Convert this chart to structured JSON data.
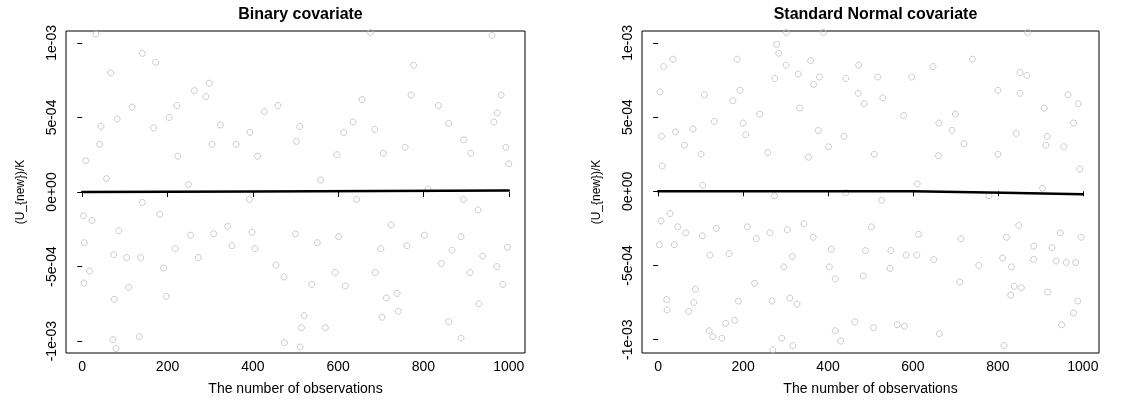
{
  "chart_data": [
    {
      "type": "scatter",
      "title": "Binary covariate",
      "xlabel": "The number of observations",
      "ylabel": "(U_{new})/K",
      "xlim": [
        -38,
        1038
      ],
      "xticks": [
        0,
        200,
        400,
        600,
        800,
        1000
      ],
      "ylim": [
        -0.00108,
        0.00108
      ],
      "yticks": [
        {
          "value": -0.001,
          "label": "-1e-03"
        },
        {
          "value": -0.0005,
          "label": "-5e-04"
        },
        {
          "value": 0,
          "label": "0e+00"
        },
        {
          "value": 0.0005,
          "label": "5e-04"
        },
        {
          "value": 0.001,
          "label": "1e-03"
        }
      ],
      "grid": false,
      "marker": "circle",
      "series": [
        {
          "color": "#bebebe",
          "x": [
            32,
            676,
            961,
            141,
            172,
            67,
            777,
            298,
            263,
            290,
            771,
            982,
            656,
            117,
            222,
            459,
            835,
            427,
            973,
            82,
            204,
            324,
            510,
            859,
            44,
            167,
            635,
            686,
            393,
            613,
            965,
            894,
            41,
            304,
            361,
            502,
            757,
            993,
            8,
            224,
            411,
            597,
            706,
            911,
            1000,
            57,
            249,
            559,
            810,
            643,
            392,
            141,
            894,
            3,
            23,
            86,
            182,
            254,
            308,
            398,
            341,
            500,
            601,
            724,
            802,
            888,
            928,
            5,
            351,
            405,
            551,
            700,
            761,
            867,
            997,
            218,
            272,
            104,
            137,
            74,
            939,
            17,
            191,
            454,
            473,
            593,
            687,
            842,
            909,
            972,
            4,
            109,
            538,
            617,
            986,
            197,
            713,
            738,
            75,
            930,
            703,
            741,
            520,
            514,
            570,
            859,
            72,
            134,
            474,
            511,
            79,
            888
          ],
          "values": [
            0.00106,
            0.00107,
            0.00105,
            0.00093,
            0.00087,
            0.0008,
            0.00085,
            0.00073,
            0.00068,
            0.00064,
            0.00065,
            0.00065,
            0.00062,
            0.00057,
            0.00058,
            0.00058,
            0.00058,
            0.00054,
            0.00053,
            0.00049,
            0.0005,
            0.00045,
            0.00044,
            0.00046,
            0.00044,
            0.00043,
            0.00047,
            0.00042,
            0.0004,
            0.0004,
            0.00047,
            0.00035,
            0.00032,
            0.00032,
            0.00032,
            0.00034,
            0.0003,
            0.0003,
            0.00021,
            0.00024,
            0.00024,
            0.00025,
            0.00026,
            0.00026,
            0.00019,
            9e-05,
            5e-05,
            8e-05,
            2e-05,
            -5e-05,
            -5e-05,
            -7e-05,
            -5e-05,
            -0.00016,
            -0.00019,
            -0.00026,
            -0.00015,
            -0.00029,
            -0.00028,
            -0.00027,
            -0.00023,
            -0.00028,
            -0.0003,
            -0.00022,
            -0.00029,
            -0.0003,
            -0.00012,
            -0.00034,
            -0.00036,
            -0.00038,
            -0.00034,
            -0.00038,
            -0.00036,
            -0.00039,
            -0.00037,
            -0.00038,
            -0.00044,
            -0.00044,
            -0.00044,
            -0.00042,
            -0.00043,
            -0.00053,
            -0.00051,
            -0.00049,
            -0.00057,
            -0.00054,
            -0.00054,
            -0.00048,
            -0.00054,
            -0.0005,
            -0.00061,
            -0.00064,
            -0.00062,
            -0.00063,
            -0.00062,
            -0.0007,
            -0.00071,
            -0.00068,
            -0.00072,
            -0.00075,
            -0.00084,
            -0.0008,
            -0.00083,
            -0.00091,
            -0.00091,
            -0.00087,
            -0.00099,
            -0.00097,
            -0.00101,
            -0.00104,
            -0.00105,
            -0.00098
          ]
        },
        {
          "type": "line",
          "color": "#000000",
          "marker": "none",
          "x": [
            0,
            1000
          ],
          "values": [
            0,
            1e-05
          ]
        }
      ]
    },
    {
      "type": "scatter",
      "title": "Standard Normal covariate",
      "xlabel": "The number of observations",
      "ylabel": "(U_{new})/K",
      "xlim": [
        -38,
        1038
      ],
      "xticks": [
        0,
        200,
        400,
        600,
        800,
        1000
      ],
      "ylim": [
        -0.00109,
        0.00108
      ],
      "yticks": [
        {
          "value": -0.001,
          "label": "-1e-03"
        },
        {
          "value": -0.0005,
          "label": "-5e-04"
        },
        {
          "value": 0,
          "label": "0e+00"
        },
        {
          "value": 0.0005,
          "label": "5e-04"
        },
        {
          "value": 0.001,
          "label": "1e-03"
        }
      ],
      "grid": false,
      "marker": "circle",
      "series": [
        {
          "color": "#bebebe",
          "x": [
            302,
            389,
            870,
            279,
            284,
            186,
            35,
            740,
            13,
            301,
            472,
            647,
            359,
            852,
            330,
            380,
            275,
            442,
            517,
            597,
            868,
            366,
            800,
            4,
            109,
            193,
            471,
            852,
            965,
            176,
            529,
            485,
            989,
            333,
            909,
            239,
            578,
            700,
            132,
            200,
            661,
            978,
            82,
            377,
            692,
            8,
            41,
            206,
            438,
            843,
            916,
            62,
            401,
            720,
            800,
            913,
            955,
            101,
            258,
            509,
            660,
            10,
            354,
            993,
            105,
            274,
            442,
            610,
            779,
            905,
            526,
            7,
            28,
            46,
            65,
            104,
            137,
            210,
            263,
            304,
            343,
            365,
            502,
            613,
            713,
            849,
            947,
            996,
            3,
            38,
            231,
            820,
            884,
            122,
            167,
            316,
            408,
            488,
            548,
            584,
            609,
            649,
            811,
            884,
            927,
            937,
            961,
            983,
            296,
            403,
            546,
            755,
            832,
            483,
            417,
            227,
            710,
            838,
            855,
            88,
            917,
            20,
            310,
            830,
            268,
            189,
            327,
            988,
            84,
            21,
            72,
            978,
            180,
            159,
            463,
            507,
            563,
            580,
            950,
            120,
            129,
            150,
            291,
            417,
            662,
            430,
            317,
            814,
            270
          ],
          "values": [
            0.00107,
            0.00107,
            0.00107,
            0.00099,
            0.00093,
            0.00089,
            0.00089,
            0.00089,
            0.00084,
            0.00085,
            0.00085,
            0.00084,
            0.00088,
            0.0008,
            0.00079,
            0.00077,
            0.00076,
            0.00076,
            0.00077,
            0.00077,
            0.00078,
            0.00072,
            0.00068,
            0.00067,
            0.00065,
            0.00068,
            0.00066,
            0.00066,
            0.00065,
            0.00061,
            0.00063,
            0.00059,
            0.00059,
            0.00056,
            0.00056,
            0.00052,
            0.00051,
            0.00052,
            0.00047,
            0.00046,
            0.00046,
            0.00046,
            0.00042,
            0.00041,
            0.00041,
            0.00037,
            0.0004,
            0.00038,
            0.00037,
            0.00039,
            0.00037,
            0.00031,
            0.0003,
            0.00032,
            0.00025,
            0.00031,
            0.0003,
            0.00025,
            0.00026,
            0.00025,
            0.00024,
            0.00017,
            0.00023,
            0.00015,
            4e-05,
            -3e-05,
            -1e-05,
            5e-05,
            -3e-05,
            2e-05,
            -6e-05,
            -0.0002,
            -0.00015,
            -0.00024,
            -0.00028,
            -0.0003,
            -0.00025,
            -0.00024,
            -0.00028,
            -0.00026,
            -0.00022,
            -0.00031,
            -0.00024,
            -0.00029,
            -0.00032,
            -0.00023,
            -0.00028,
            -0.00031,
            -0.00036,
            -0.00036,
            -0.00032,
            -0.00031,
            -0.00037,
            -0.00043,
            -0.00042,
            -0.00044,
            -0.00039,
            -0.0004,
            -0.0004,
            -0.00043,
            -0.00043,
            -0.00046,
            -0.00045,
            -0.00046,
            -0.00038,
            -0.00047,
            -0.00048,
            -0.00048,
            -0.00051,
            -0.00051,
            -0.00052,
            -0.0005,
            -0.00051,
            -0.00057,
            -0.00059,
            -0.00062,
            -0.00061,
            -0.00064,
            -0.00065,
            -0.00066,
            -0.00068,
            -0.00073,
            -0.00072,
            -0.0007,
            -0.00074,
            -0.00074,
            -0.00076,
            -0.00074,
            -0.00075,
            -0.0008,
            -0.00081,
            -0.00082,
            -0.00087,
            -0.00089,
            -0.00088,
            -0.00092,
            -0.0009,
            -0.00091,
            -0.0009,
            -0.00094,
            -0.00098,
            -0.00099,
            -0.00099,
            -0.00094,
            -0.00096,
            -0.00101,
            -0.00104,
            -0.00104,
            -0.00107
          ]
        },
        {
          "type": "line",
          "color": "#000000",
          "marker": "none",
          "x": [
            0,
            600,
            1000
          ],
          "values": [
            0,
            0,
            -2e-05
          ]
        }
      ]
    }
  ]
}
